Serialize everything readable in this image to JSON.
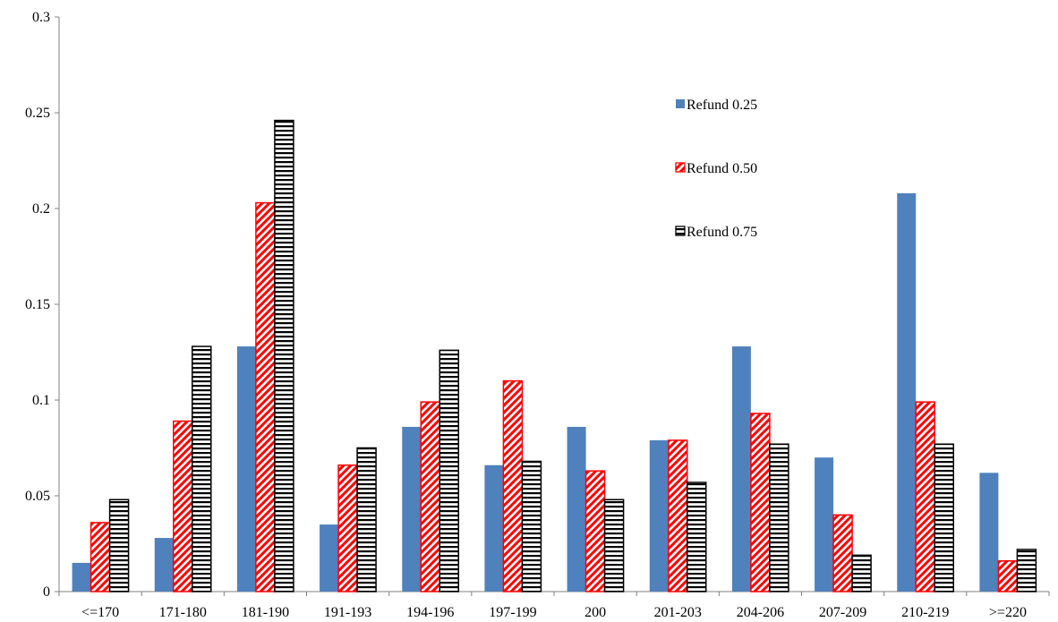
{
  "chart_data": {
    "type": "bar",
    "title": "",
    "xlabel": "",
    "ylabel": "",
    "ylim": [
      0,
      0.3
    ],
    "yticks": [
      0,
      0.05,
      0.1,
      0.15,
      0.2,
      0.25,
      0.3
    ],
    "ytick_labels": [
      "0",
      "0.05",
      "0.1",
      "0.15",
      "0.2",
      "0.25",
      "0.3"
    ],
    "grid": false,
    "legend_position": "top-right",
    "categories": [
      "<=170",
      "171-180",
      "181-190",
      "191-193",
      "194-196",
      "197-199",
      "200",
      "201-203",
      "204-206",
      "207-209",
      "210-219",
      ">=220"
    ],
    "series": [
      {
        "name": "Refund 0.25",
        "pattern": "solid",
        "color": "#4F81BD",
        "values": [
          0.015,
          0.028,
          0.128,
          0.035,
          0.086,
          0.066,
          0.086,
          0.079,
          0.128,
          0.07,
          0.208,
          0.062
        ]
      },
      {
        "name": "Refund 0.50",
        "pattern": "diagonal-stripes",
        "color": "#FF0000",
        "values": [
          0.036,
          0.089,
          0.203,
          0.066,
          0.099,
          0.11,
          0.063,
          0.079,
          0.093,
          0.04,
          0.099,
          0.016
        ]
      },
      {
        "name": "Refund 0.75",
        "pattern": "horizontal-stripes",
        "color": "#000000",
        "values": [
          0.048,
          0.128,
          0.246,
          0.075,
          0.126,
          0.068,
          0.048,
          0.057,
          0.077,
          0.019,
          0.077,
          0.022
        ]
      }
    ]
  }
}
